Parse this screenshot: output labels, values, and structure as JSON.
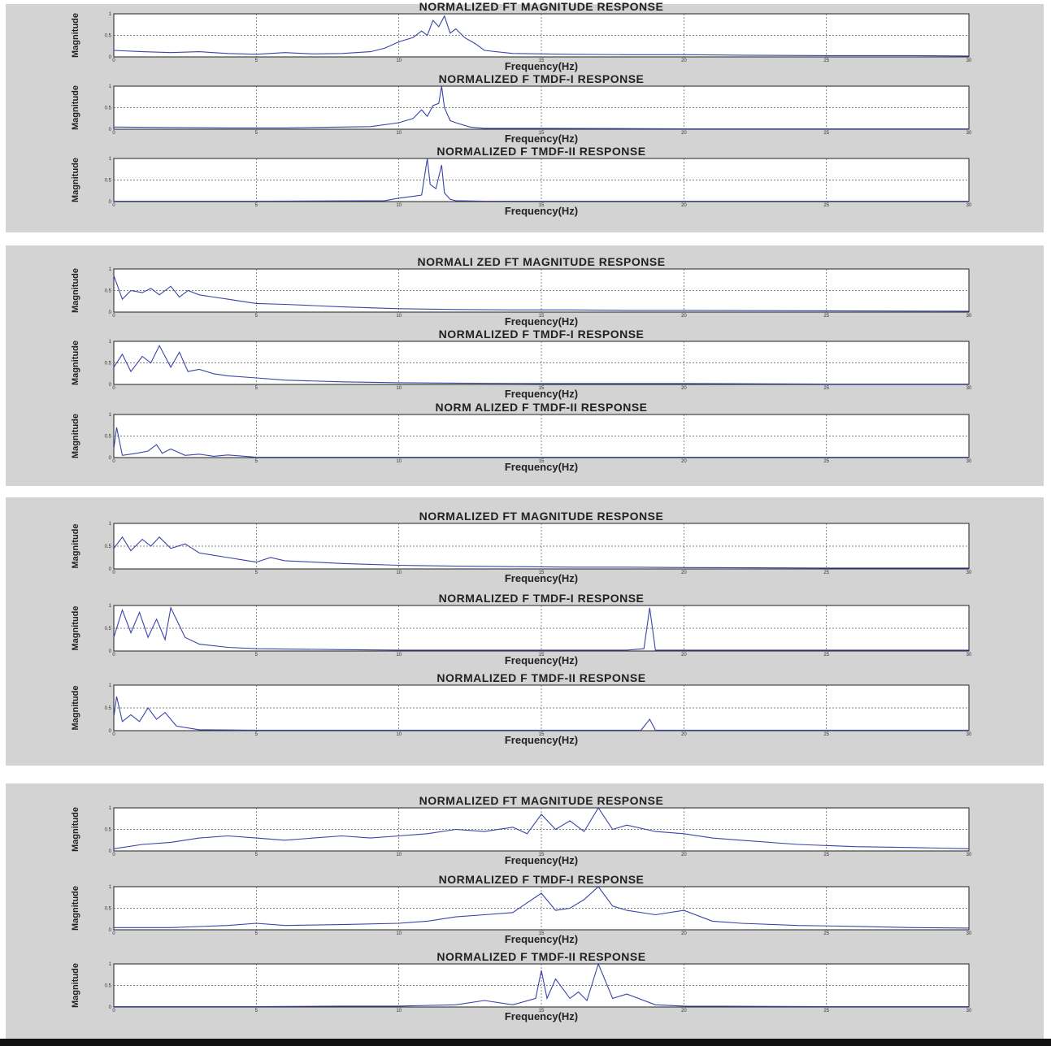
{
  "colors": {
    "panel_bg": "#d3d3d3",
    "line": "#3a44a8",
    "grid": "#555555"
  },
  "chart_data": [
    {
      "type": "line",
      "panel": 1,
      "title": "NORMALIZED FT MAGNITUDE RESPONSE",
      "xlabel": "Frequency(Hz)",
      "ylabel": "Magnitude",
      "xlim": [
        0,
        30
      ],
      "ylim": [
        0,
        1
      ],
      "xticks": [
        "0",
        "5",
        "10",
        "15",
        "20",
        "25",
        "30"
      ],
      "yticks": [
        "0",
        "0.5",
        "1"
      ],
      "grid": true,
      "series": [
        {
          "x": [
            0,
            1,
            2,
            3,
            4,
            5,
            6,
            7,
            8,
            9,
            9.5,
            10,
            10.5,
            10.8,
            11,
            11.2,
            11.4,
            11.6,
            11.8,
            12,
            12.3,
            12.7,
            13,
            14,
            15,
            16,
            18,
            20,
            22,
            25,
            28,
            30
          ],
          "y": [
            0.15,
            0.12,
            0.1,
            0.12,
            0.08,
            0.06,
            0.1,
            0.07,
            0.08,
            0.12,
            0.2,
            0.35,
            0.45,
            0.6,
            0.5,
            0.85,
            0.7,
            0.95,
            0.55,
            0.65,
            0.45,
            0.3,
            0.15,
            0.08,
            0.07,
            0.06,
            0.05,
            0.05,
            0.04,
            0.03,
            0.03,
            0.02
          ]
        }
      ]
    },
    {
      "type": "line",
      "panel": 1,
      "title": "NORMALIZED F TMDF-I RESPONSE",
      "xlabel": "Frequency(Hz)",
      "ylabel": "Magnitude",
      "xlim": [
        0,
        30
      ],
      "ylim": [
        0,
        1
      ],
      "xticks": [
        "0",
        "5",
        "10",
        "15",
        "20",
        "25",
        "30"
      ],
      "yticks": [
        "0",
        "0.5",
        "1"
      ],
      "grid": true,
      "series": [
        {
          "x": [
            0,
            2,
            4,
            6,
            8,
            9,
            10,
            10.5,
            10.8,
            11,
            11.2,
            11.4,
            11.5,
            11.6,
            11.8,
            12,
            12.5,
            13,
            15,
            20,
            25,
            30
          ],
          "y": [
            0.05,
            0.04,
            0.03,
            0.03,
            0.05,
            0.06,
            0.15,
            0.25,
            0.45,
            0.3,
            0.55,
            0.6,
            1.0,
            0.5,
            0.2,
            0.15,
            0.05,
            0.02,
            0.02,
            0.01,
            0.01,
            0.01
          ]
        }
      ]
    },
    {
      "type": "line",
      "panel": 1,
      "title": "NORMALIZED F TMDF-II RESPONSE",
      "xlabel": "Frequency(Hz)",
      "ylabel": "Magnitude",
      "xlim": [
        0,
        30
      ],
      "ylim": [
        0,
        1
      ],
      "xticks": [
        "0",
        "5",
        "10",
        "15",
        "20",
        "25",
        "30"
      ],
      "yticks": [
        "0",
        "0.5",
        "1"
      ],
      "grid": true,
      "series": [
        {
          "x": [
            0,
            5,
            9.5,
            10,
            10.5,
            10.8,
            11,
            11.1,
            11.3,
            11.5,
            11.6,
            11.8,
            12,
            13,
            20,
            30
          ],
          "y": [
            0.01,
            0.01,
            0.02,
            0.08,
            0.12,
            0.15,
            1.0,
            0.4,
            0.3,
            0.85,
            0.2,
            0.05,
            0.02,
            0.01,
            0.01,
            0.01
          ]
        }
      ]
    },
    {
      "type": "line",
      "panel": 2,
      "title": "NORMALI ZED FT MAGNITUDE RESPONSE",
      "xlabel": "Frequency(Hz)",
      "ylabel": "Magnitude",
      "xlim": [
        0,
        30
      ],
      "ylim": [
        0,
        1
      ],
      "xticks": [
        "0",
        "5",
        "10",
        "15",
        "20",
        "25",
        "30"
      ],
      "yticks": [
        "0",
        "0.5",
        "1"
      ],
      "grid": true,
      "series": [
        {
          "x": [
            0,
            0.3,
            0.6,
            1,
            1.3,
            1.6,
            2,
            2.3,
            2.6,
            3,
            3.5,
            4,
            4.5,
            5,
            6,
            7,
            8,
            9,
            10,
            12,
            14,
            16,
            18,
            20,
            25,
            30
          ],
          "y": [
            0.85,
            0.3,
            0.5,
            0.45,
            0.55,
            0.4,
            0.6,
            0.35,
            0.5,
            0.4,
            0.35,
            0.3,
            0.25,
            0.2,
            0.18,
            0.15,
            0.12,
            0.1,
            0.08,
            0.06,
            0.05,
            0.05,
            0.04,
            0.04,
            0.03,
            0.02
          ]
        }
      ]
    },
    {
      "type": "line",
      "panel": 2,
      "title": "NORMALIZED F TMDF-I RESPONSE",
      "xlabel": "Frequency(Hz)",
      "ylabel": "Magnitude",
      "xlim": [
        0,
        30
      ],
      "ylim": [
        0,
        1
      ],
      "xticks": [
        "0",
        "5",
        "10",
        "15",
        "20",
        "25",
        "30"
      ],
      "yticks": [
        "0",
        "0.5",
        "1"
      ],
      "grid": true,
      "series": [
        {
          "x": [
            0,
            0.3,
            0.6,
            1,
            1.3,
            1.6,
            2,
            2.3,
            2.6,
            3,
            3.5,
            4,
            5,
            6,
            8,
            10,
            12,
            15,
            20,
            25,
            30
          ],
          "y": [
            0.4,
            0.7,
            0.3,
            0.65,
            0.5,
            0.9,
            0.4,
            0.75,
            0.3,
            0.35,
            0.25,
            0.2,
            0.15,
            0.1,
            0.06,
            0.04,
            0.03,
            0.02,
            0.02,
            0.01,
            0.01
          ]
        }
      ]
    },
    {
      "type": "line",
      "panel": 2,
      "title": "NORM ALIZED F TMDF-II RESPONSE",
      "xlabel": "Frequency(Hz)",
      "ylabel": "Magnitude",
      "xlim": [
        0,
        30
      ],
      "ylim": [
        0,
        1
      ],
      "xticks": [
        "0",
        "5",
        "10",
        "15",
        "20",
        "25",
        "30"
      ],
      "yticks": [
        "0",
        "0.5",
        "1"
      ],
      "grid": true,
      "series": [
        {
          "x": [
            0,
            0.1,
            0.3,
            0.8,
            1.2,
            1.5,
            1.7,
            2,
            2.5,
            3,
            3.5,
            4,
            5,
            10,
            20,
            30
          ],
          "y": [
            0.2,
            0.7,
            0.05,
            0.1,
            0.15,
            0.3,
            0.1,
            0.2,
            0.05,
            0.08,
            0.03,
            0.06,
            0.01,
            0.01,
            0.01,
            0.01
          ]
        }
      ]
    },
    {
      "type": "line",
      "panel": 3,
      "title": "NORMALIZED FT MAGNITUDE RESPONSE",
      "xlabel": "Frequency(Hz)",
      "ylabel": "Magnitude",
      "xlim": [
        0,
        30
      ],
      "ylim": [
        0,
        1
      ],
      "xticks": [
        "0",
        "5",
        "10",
        "15",
        "20",
        "25",
        "30"
      ],
      "yticks": [
        "0",
        "0.5",
        "1"
      ],
      "grid": true,
      "series": [
        {
          "x": [
            0,
            0.3,
            0.6,
            1,
            1.3,
            1.6,
            2,
            2.5,
            3,
            3.5,
            4,
            4.5,
            5,
            5.5,
            6,
            7,
            8,
            9,
            10,
            12,
            14,
            16,
            18,
            20,
            25,
            30
          ],
          "y": [
            0.45,
            0.7,
            0.4,
            0.65,
            0.5,
            0.7,
            0.45,
            0.55,
            0.35,
            0.3,
            0.25,
            0.2,
            0.15,
            0.25,
            0.18,
            0.15,
            0.12,
            0.1,
            0.08,
            0.06,
            0.05,
            0.04,
            0.04,
            0.03,
            0.02,
            0.02
          ]
        }
      ]
    },
    {
      "type": "line",
      "panel": 3,
      "title": "NORMALIZED F TMDF-I RESPONSE",
      "xlabel": "Frequency(Hz)",
      "ylabel": "Magnitude",
      "xlim": [
        0,
        30
      ],
      "ylim": [
        0,
        1
      ],
      "xticks": [
        "0",
        "5",
        "10",
        "15",
        "20",
        "25",
        "30"
      ],
      "yticks": [
        "0",
        "0.5",
        "1"
      ],
      "grid": true,
      "series": [
        {
          "x": [
            0,
            0.3,
            0.6,
            0.9,
            1.2,
            1.5,
            1.8,
            2,
            2.5,
            3,
            4,
            5,
            8,
            10,
            15,
            18,
            18.6,
            18.8,
            19,
            20,
            25,
            30
          ],
          "y": [
            0.3,
            0.9,
            0.4,
            0.85,
            0.3,
            0.7,
            0.25,
            0.95,
            0.3,
            0.15,
            0.08,
            0.05,
            0.03,
            0.02,
            0.02,
            0.02,
            0.05,
            0.95,
            0.02,
            0.02,
            0.02,
            0.02
          ]
        }
      ]
    },
    {
      "type": "line",
      "panel": 3,
      "title": "NORMALIZED F TMDF-II RESPONSE",
      "xlabel": "Frequency(Hz)",
      "ylabel": "Magnitude",
      "xlim": [
        0,
        30
      ],
      "ylim": [
        0,
        1
      ],
      "xticks": [
        "0",
        "5",
        "10",
        "15",
        "20",
        "25",
        "30"
      ],
      "yticks": [
        "0",
        "0.5",
        "1"
      ],
      "grid": true,
      "series": [
        {
          "x": [
            0,
            0.1,
            0.3,
            0.6,
            0.9,
            1.2,
            1.5,
            1.8,
            2.2,
            3,
            5,
            10,
            18.5,
            18.8,
            19,
            20,
            30
          ],
          "y": [
            0.3,
            0.75,
            0.2,
            0.35,
            0.2,
            0.5,
            0.25,
            0.4,
            0.1,
            0.02,
            0.01,
            0.01,
            0.01,
            0.25,
            0.01,
            0.01,
            0.01
          ]
        }
      ]
    },
    {
      "type": "line",
      "panel": 4,
      "title": "NORMALIZED FT MAGNITUDE RESPONSE",
      "xlabel": "Frequency(Hz)",
      "ylabel": "Magnitude",
      "xlim": [
        0,
        30
      ],
      "ylim": [
        0,
        1
      ],
      "xticks": [
        "0",
        "5",
        "10",
        "15",
        "20",
        "25",
        "30"
      ],
      "yticks": [
        "0",
        "0.5",
        "1"
      ],
      "grid": true,
      "series": [
        {
          "x": [
            0,
            1,
            2,
            3,
            4,
            5,
            6,
            7,
            8,
            9,
            10,
            11,
            12,
            13,
            14,
            14.5,
            15,
            15.5,
            16,
            16.5,
            17,
            17.5,
            18,
            19,
            20,
            21,
            22,
            24,
            26,
            28,
            30
          ],
          "y": [
            0.05,
            0.15,
            0.2,
            0.3,
            0.35,
            0.3,
            0.25,
            0.3,
            0.35,
            0.3,
            0.35,
            0.4,
            0.5,
            0.45,
            0.55,
            0.4,
            0.85,
            0.5,
            0.7,
            0.45,
            1.0,
            0.5,
            0.6,
            0.45,
            0.4,
            0.3,
            0.25,
            0.15,
            0.1,
            0.08,
            0.05
          ]
        }
      ]
    },
    {
      "type": "line",
      "panel": 4,
      "title": "NORMALIZED F TMDF-I RESPONSE",
      "xlabel": "Frequency(Hz)",
      "ylabel": "Magnitude",
      "xlim": [
        0,
        30
      ],
      "ylim": [
        0,
        1
      ],
      "xticks": [
        "0",
        "5",
        "10",
        "15",
        "20",
        "25",
        "30"
      ],
      "yticks": [
        "0",
        "0.5",
        "1"
      ],
      "grid": true,
      "series": [
        {
          "x": [
            0,
            2,
            4,
            5,
            6,
            8,
            10,
            11,
            12,
            13,
            14,
            15,
            15.5,
            16,
            16.5,
            17,
            17.5,
            18,
            19,
            20,
            21,
            22,
            24,
            26,
            28,
            30
          ],
          "y": [
            0.05,
            0.05,
            0.1,
            0.15,
            0.1,
            0.12,
            0.15,
            0.2,
            0.3,
            0.35,
            0.4,
            0.85,
            0.45,
            0.5,
            0.7,
            1.0,
            0.55,
            0.45,
            0.35,
            0.45,
            0.2,
            0.15,
            0.1,
            0.08,
            0.05,
            0.04
          ]
        }
      ]
    },
    {
      "type": "line",
      "panel": 4,
      "title": "NORMALIZED F TMDF-II RESPONSE",
      "xlabel": "Frequency(Hz)",
      "ylabel": "Magnitude",
      "xlim": [
        0,
        30
      ],
      "ylim": [
        0,
        1
      ],
      "xticks": [
        "0",
        "5",
        "10",
        "15",
        "20",
        "25",
        "30"
      ],
      "yticks": [
        "0",
        "0.5",
        "1"
      ],
      "grid": true,
      "series": [
        {
          "x": [
            0,
            5,
            8,
            10,
            12,
            13,
            14,
            14.8,
            15,
            15.2,
            15.5,
            16,
            16.3,
            16.6,
            17,
            17.5,
            18,
            19,
            20,
            25,
            30
          ],
          "y": [
            0.01,
            0.01,
            0.02,
            0.02,
            0.05,
            0.15,
            0.05,
            0.2,
            0.85,
            0.2,
            0.65,
            0.2,
            0.35,
            0.15,
            1.0,
            0.2,
            0.3,
            0.05,
            0.02,
            0.01,
            0.01
          ]
        }
      ]
    }
  ]
}
